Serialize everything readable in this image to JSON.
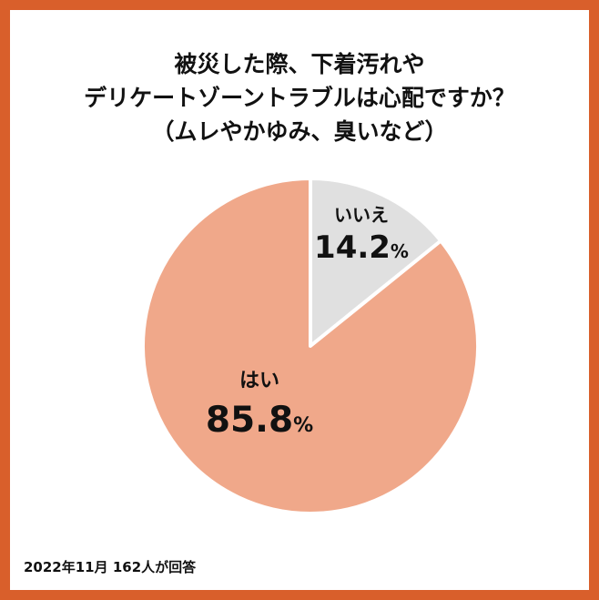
{
  "title_lines": [
    "被災した際、下着汚れや",
    "デリケートゾーントラブルは心配ですか？",
    "（ムレやかゆみ、臭いなど）"
  ],
  "footnote": "2022年11月 162人が回答",
  "colors": {
    "frame": "#d95f2b",
    "no": "#e0e0e0",
    "yes": "#f0a88a",
    "stroke": "#ffffff"
  },
  "chart_data": {
    "type": "pie",
    "unit": "%",
    "slices": [
      {
        "name": "いいえ",
        "value": 14.2,
        "color": "#e0e0e0"
      },
      {
        "name": "はい",
        "value": 85.8,
        "color": "#f0a88a"
      }
    ]
  }
}
